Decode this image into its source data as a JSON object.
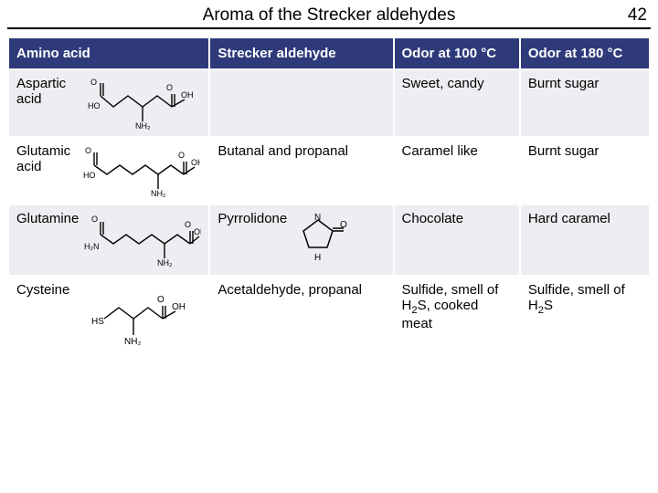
{
  "page": {
    "title": "Aroma of the Strecker aldehydes",
    "number": "42"
  },
  "table": {
    "headers": {
      "amino": "Amino acid",
      "aldehyde": "Strecker aldehyde",
      "odor100": "Odor at 100 °C",
      "odor180": "Odor at 180 °C"
    },
    "col_widths": {
      "amino": 217,
      "aldehyde": 202,
      "odor100": 140,
      "odor180": 145
    },
    "header_bg": "#2e3a7a",
    "header_fg": "#ffffff",
    "row_bg_odd": "#eceef1",
    "row_bg_even": "#ffffff",
    "rows": [
      {
        "name_line1": "Aspartic",
        "name_line2": "acid",
        "aldehyde": "",
        "odor100": "Sweet, candy",
        "odor180": "Burnt sugar"
      },
      {
        "name_line1": "Glutamic",
        "name_line2": "acid",
        "aldehyde": "Butanal and propanal",
        "odor100": "Caramel like",
        "odor180": "Burnt sugar"
      },
      {
        "name_line1": "Glutamine",
        "name_line2": "",
        "aldehyde": "Pyrrolidone",
        "odor100": "Chocolate",
        "odor180": "Hard caramel"
      },
      {
        "name_line1": "Cysteine",
        "name_line2": "",
        "aldehyde": "Acetaldehyde, propanal",
        "odor100_html": "Sulfide, smell of H<sub>2</sub>S, cooked meat",
        "odor180_html": "Sulfide, smell of H<sub>2</sub>S"
      }
    ]
  },
  "style": {
    "font_family": "Arial",
    "title_fontsize": 19,
    "body_fontsize": 15,
    "rule_color": "#000000"
  }
}
